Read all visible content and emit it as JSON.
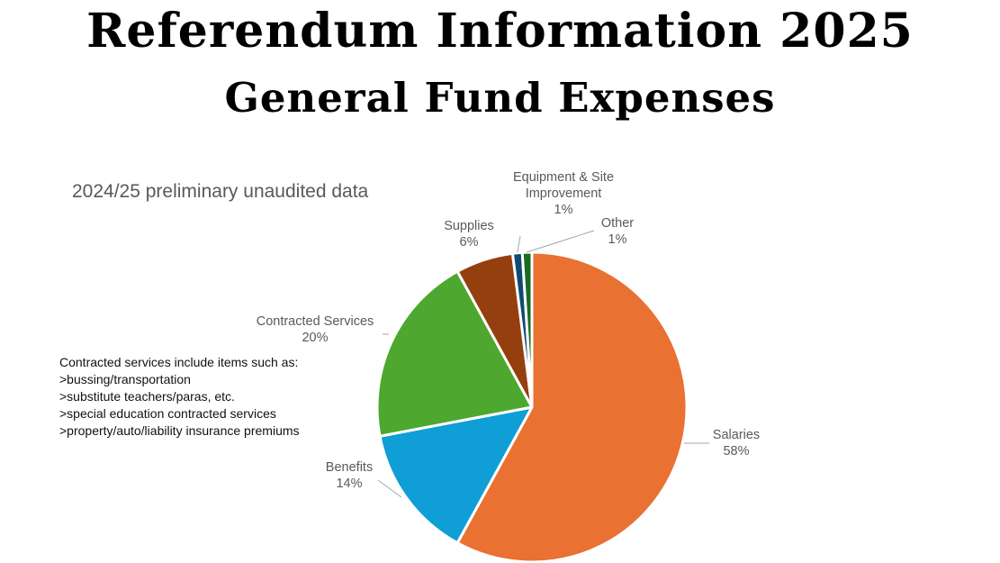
{
  "header": {
    "title": "Referendum Information 2025",
    "subtitle": "General Fund Expenses"
  },
  "note": "2024/25 preliminary unaudited data",
  "annotation": {
    "heading": "Contracted services include items such as:",
    "items": [
      ">bussing/transportation",
      ">substitute teachers/paras, etc.",
      ">special education contracted services",
      ">property/auto/liability insurance premiums"
    ]
  },
  "chart_data": {
    "type": "pie",
    "title": "",
    "start_angle_deg": 0,
    "direction": "clockwise",
    "slices": [
      {
        "label": "Salaries",
        "pct_label": "58%",
        "value": 58,
        "color": "#E97132"
      },
      {
        "label": "Benefits",
        "pct_label": "14%",
        "value": 14,
        "color": "#0F9ED5"
      },
      {
        "label": "Contracted Services",
        "pct_label": "20%",
        "value": 20,
        "color": "#4EA72E"
      },
      {
        "label": "Supplies",
        "pct_label": "6%",
        "value": 6,
        "color": "#953F0F"
      },
      {
        "label": "Equipment & Site Improvement",
        "label_lines": [
          "Equipment & Site",
          "Improvement"
        ],
        "pct_label": "1%",
        "value": 1,
        "color": "#0E4A73"
      },
      {
        "label": "Other",
        "pct_label": "1%",
        "value": 1,
        "color": "#196B24"
      }
    ],
    "legend": "none",
    "data_labels": "outside with leader lines"
  }
}
